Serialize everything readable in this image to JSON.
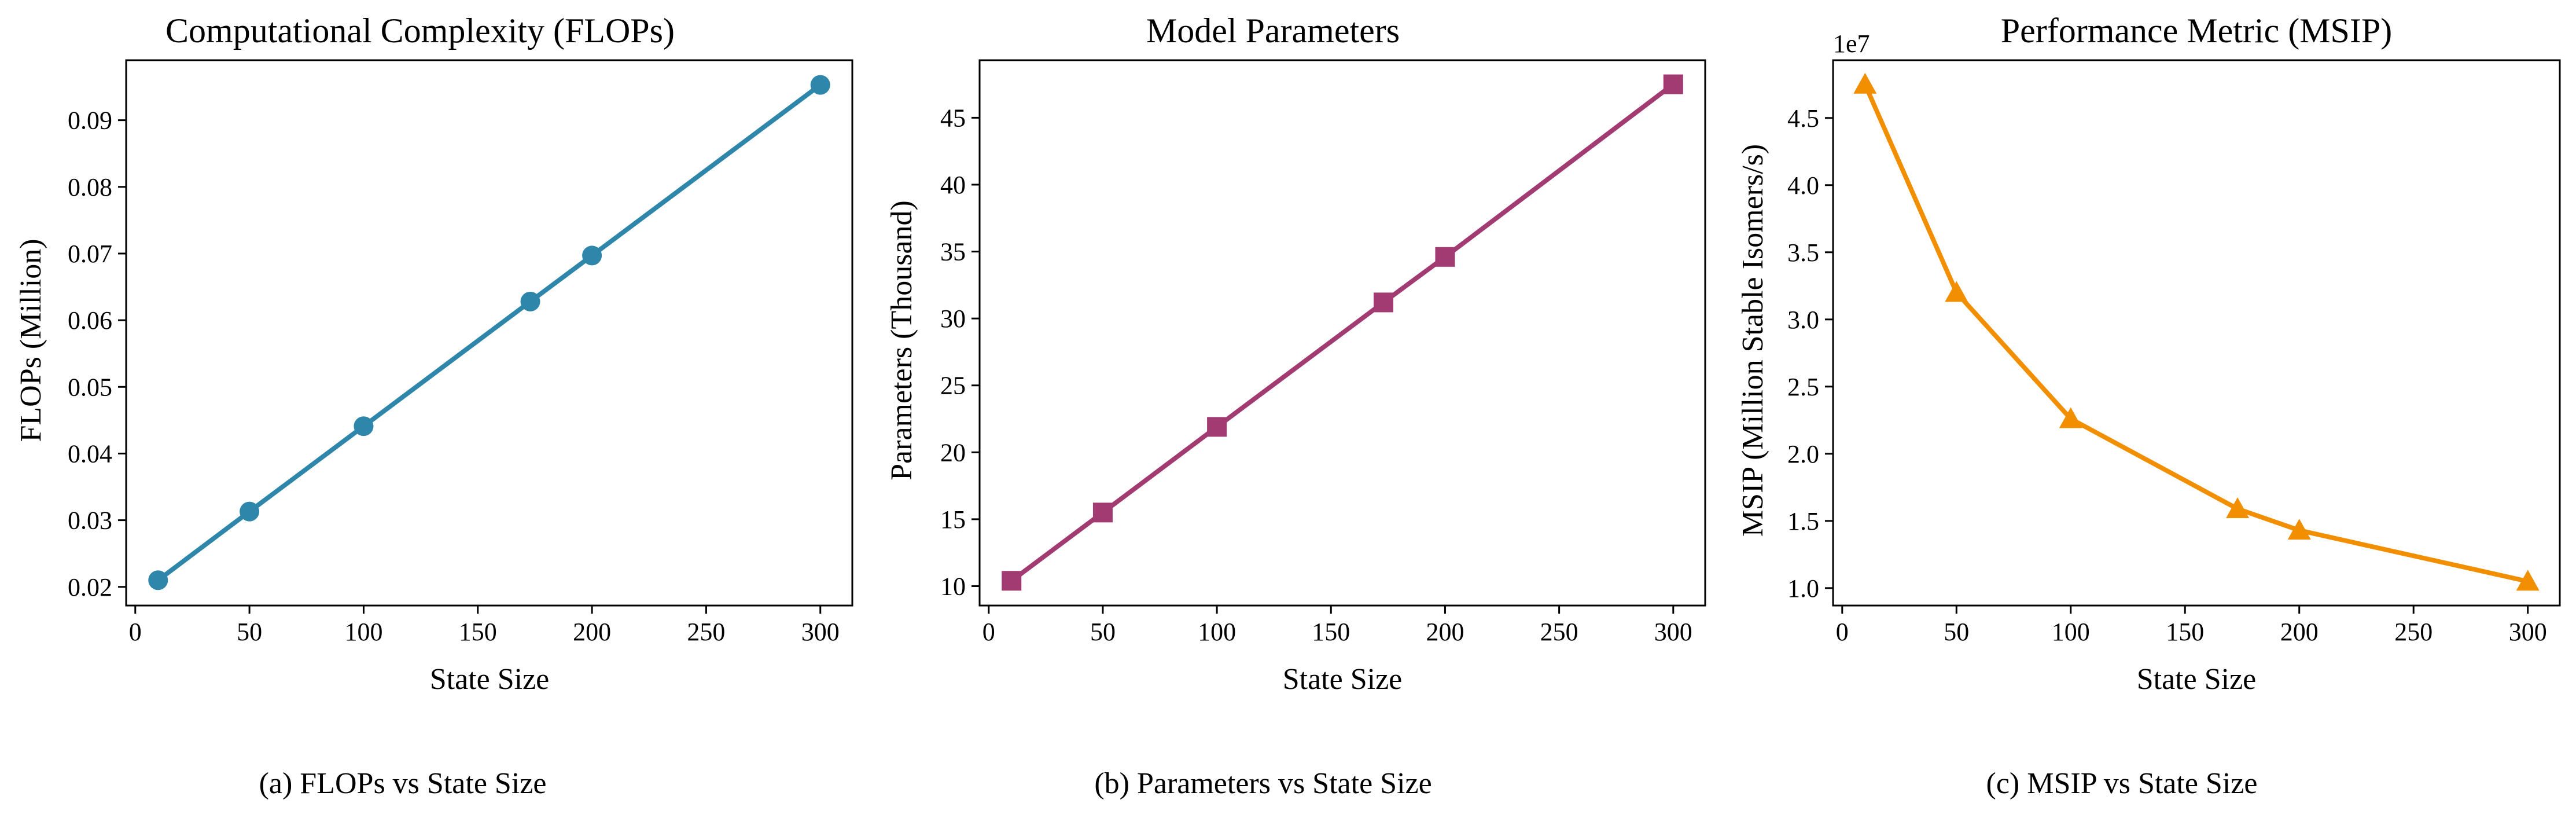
{
  "chart_data": [
    {
      "type": "line",
      "title": "Computational Complexity (FLOPs)",
      "xlabel": "State Size",
      "ylabel": "FLOPs (Million)",
      "caption": "(a) FLOPs vs State Size",
      "x": [
        10,
        50,
        100,
        173,
        200,
        300
      ],
      "series": [
        {
          "values": [
            0.021,
            0.0313,
            0.0441,
            0.0628,
            0.0697,
            0.0953
          ]
        }
      ],
      "xlim": [
        -4,
        314
      ],
      "ylim": [
        0.0172,
        0.099
      ],
      "xticks": [
        0,
        50,
        100,
        150,
        200,
        250,
        300
      ],
      "yticks": [
        0.02,
        0.03,
        0.04,
        0.05,
        0.06,
        0.07,
        0.08,
        0.09
      ],
      "ytick_labels": [
        "0.02",
        "0.03",
        "0.04",
        "0.05",
        "0.06",
        "0.07",
        "0.08",
        "0.09"
      ],
      "offset_label": "",
      "color": "#2e86ab",
      "marker": "circle",
      "grid": false
    },
    {
      "type": "line",
      "title": "Model Parameters",
      "xlabel": "State Size",
      "ylabel": "Parameters (Thousand)",
      "caption": "(b) Parameters vs State Size",
      "x": [
        10,
        50,
        100,
        173,
        200,
        300
      ],
      "series": [
        {
          "values": [
            10.4,
            15.5,
            21.9,
            31.2,
            34.6,
            47.5
          ]
        }
      ],
      "xlim": [
        -4,
        314
      ],
      "ylim": [
        8.55,
        49.3
      ],
      "xticks": [
        0,
        50,
        100,
        150,
        200,
        250,
        300
      ],
      "yticks": [
        10,
        15,
        20,
        25,
        30,
        35,
        40,
        45
      ],
      "ytick_labels": [
        "10",
        "15",
        "20",
        "25",
        "30",
        "35",
        "40",
        "45"
      ],
      "offset_label": "",
      "color": "#a23b72",
      "marker": "square",
      "grid": false
    },
    {
      "type": "line",
      "title": "Performance Metric (MSIP)",
      "xlabel": "State Size",
      "ylabel": "MSIP (Million Stable Isomers/s)",
      "caption": "(c) MSIP vs State Size",
      "x": [
        10,
        50,
        100,
        173,
        200,
        300
      ],
      "series": [
        {
          "values": [
            4.75,
            3.2,
            2.26,
            1.59,
            1.43,
            1.05
          ]
        }
      ],
      "xlim": [
        -4,
        314
      ],
      "ylim": [
        0.87,
        4.93
      ],
      "xticks": [
        0,
        50,
        100,
        150,
        200,
        250,
        300
      ],
      "yticks": [
        1.0,
        1.5,
        2.0,
        2.5,
        3.0,
        3.5,
        4.0,
        4.5
      ],
      "ytick_labels": [
        "1.0",
        "1.5",
        "2.0",
        "2.5",
        "3.0",
        "3.5",
        "4.0",
        "4.5"
      ],
      "offset_label": "1e7",
      "color": "#f18f01",
      "marker": "triangle",
      "grid": false
    }
  ]
}
